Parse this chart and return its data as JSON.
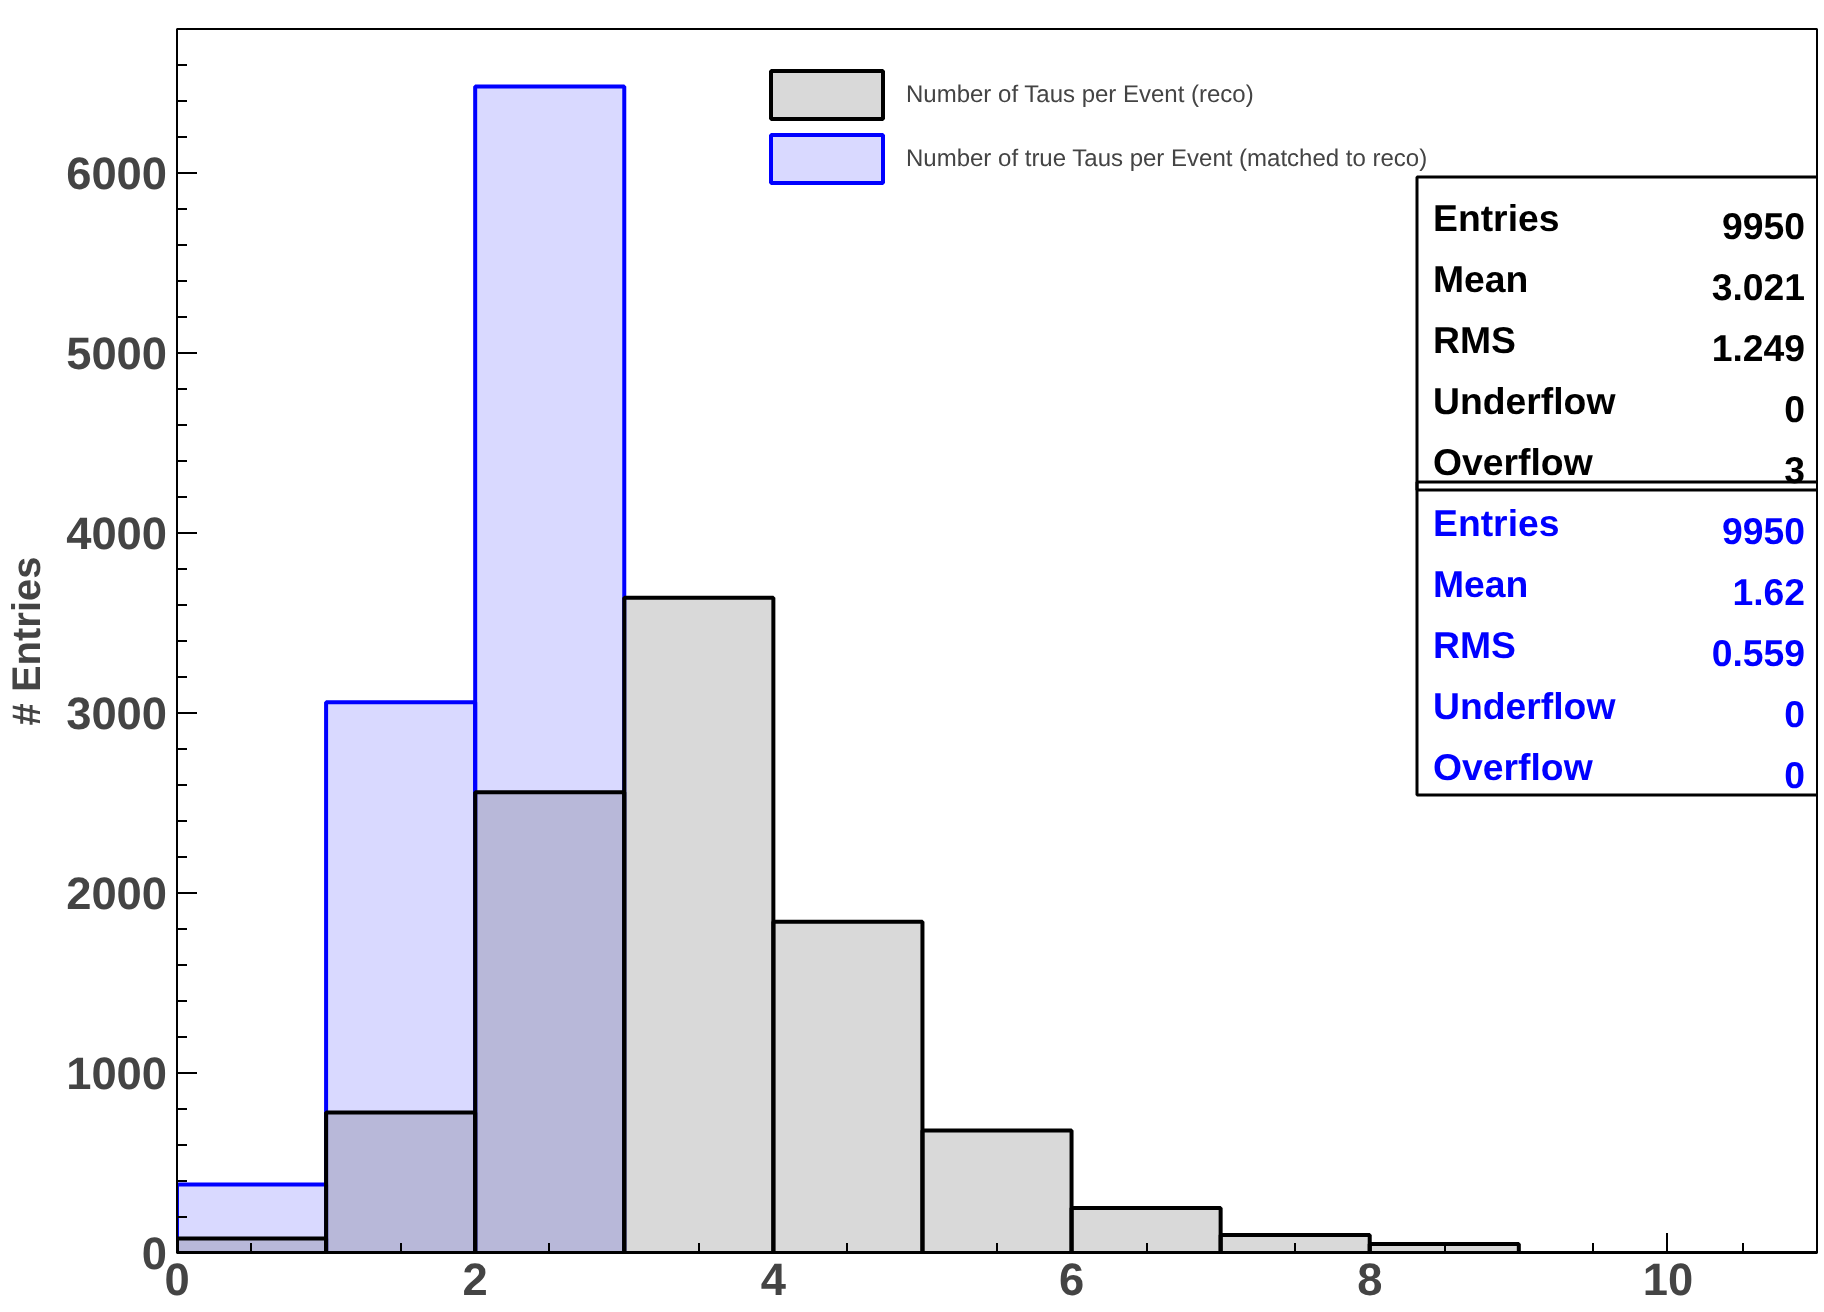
{
  "chart_data": {
    "type": "histogram",
    "ylabel": "# Entries",
    "bins": [
      0,
      1,
      2,
      3,
      4,
      5,
      6,
      7,
      8,
      9,
      10,
      11
    ],
    "series": [
      {
        "name": "Number of Taus per Event (reco)",
        "color": "#000000",
        "values": [
          80,
          780,
          2560,
          3640,
          1840,
          680,
          250,
          100,
          50,
          0,
          0
        ]
      },
      {
        "name": "Number of true Taus per Event (matched to reco)",
        "color": "#0000ff",
        "values": [
          380,
          3060,
          6480,
          null,
          0,
          0,
          0,
          0,
          0,
          0,
          0
        ]
      }
    ],
    "xlim": [
      0,
      11
    ],
    "ylim": [
      0,
      6800
    ],
    "xticks": [
      0,
      2,
      4,
      6,
      8,
      10
    ],
    "yticks": [
      0,
      1000,
      2000,
      3000,
      4000,
      5000,
      6000
    ],
    "grid": false,
    "legend": "top right",
    "annotations": [
      "Entries 9950",
      "Mean 3.021",
      "RMS 1.249",
      "Underflow 0",
      "Overflow 3",
      "Entries 9950",
      "Mean 1.62",
      "RMS 0.559",
      "Underflow 0",
      "Overflow 0"
    ]
  }
}
